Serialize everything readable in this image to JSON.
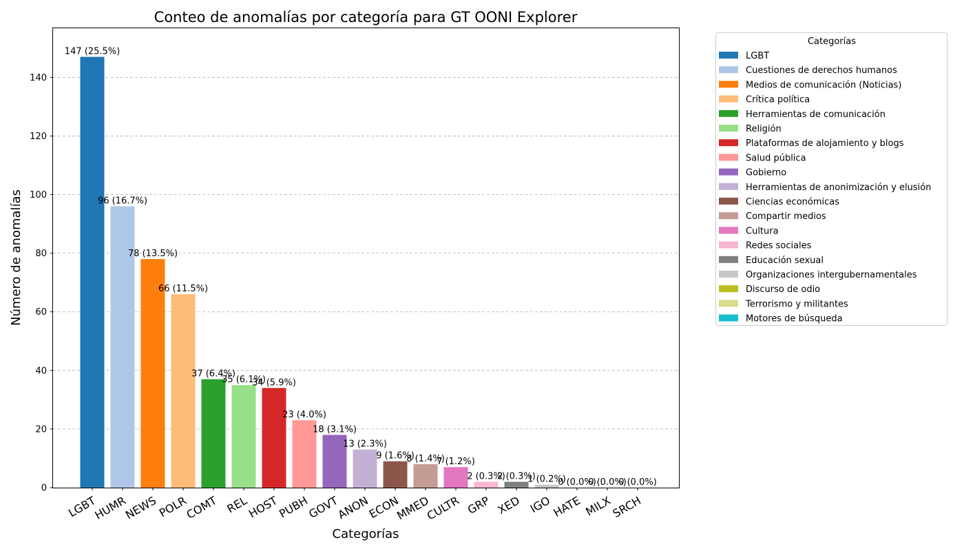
{
  "chart_data": {
    "type": "bar",
    "title": "Conteo de anomalías por categoría para GT OONI Explorer",
    "xlabel": "Categorías",
    "ylabel": "Número de anomalías",
    "ylim": [
      0,
      157
    ],
    "yticks": [
      0,
      20,
      40,
      60,
      80,
      100,
      120,
      140
    ],
    "grid": "horizontal dashed",
    "legend_title": "Categorías",
    "legend_position": "outside right",
    "categories": [
      "LGBT",
      "HUMR",
      "NEWS",
      "POLR",
      "COMT",
      "REL",
      "HOST",
      "PUBH",
      "GOVT",
      "ANON",
      "ECON",
      "MMED",
      "CULTR",
      "GRP",
      "XED",
      "IGO",
      "HATE",
      "MILX",
      "SRCH"
    ],
    "values": [
      147,
      96,
      78,
      66,
      37,
      35,
      34,
      23,
      18,
      13,
      9,
      8,
      7,
      2,
      2,
      1,
      0,
      0,
      0
    ],
    "data_labels": [
      "147 (25.5%)",
      "96 (16.7%)",
      "78 (13.5%)",
      "66 (11.5%)",
      "37 (6.4%)",
      "35 (6.1%)",
      "34 (5.9%)",
      "23 (4.0%)",
      "18 (3.1%)",
      "13 (2.3%)",
      "9 (1.6%)",
      "8 (1.4%)",
      "7 (1.2%)",
      "2 (0.3%)",
      "2 (0.3%)",
      "1 (0.2%)",
      "0 (0.0%)",
      "0 (0.0%)",
      "0 (0.0%)"
    ],
    "legend_labels": [
      "LGBT",
      "Cuestiones de derechos humanos",
      "Medios de comunicación (Noticias)",
      "Crítica política",
      "Herramientas de comunicación",
      "Religión",
      "Plataformas de alojamiento y blogs",
      "Salud pública",
      "Gobierno",
      "Herramientas de anonimización y elusión",
      "Ciencias económicas",
      "Compartir medios",
      "Cultura",
      "Redes sociales",
      "Educación sexual",
      "Organizaciones intergubernamentales",
      "Discurso de odio",
      "Terrorismo y militantes",
      "Motores de búsqueda"
    ],
    "colors": [
      "#1f77b4",
      "#aec7e8",
      "#ff7f0e",
      "#ffbb78",
      "#2ca02c",
      "#98df8a",
      "#d62728",
      "#ff9896",
      "#9467bd",
      "#c5b0d5",
      "#8c564b",
      "#c49c94",
      "#e377c2",
      "#f7b6d2",
      "#7f7f7f",
      "#c7c7c7",
      "#bcbd22",
      "#dbdb8d",
      "#17becf"
    ]
  }
}
